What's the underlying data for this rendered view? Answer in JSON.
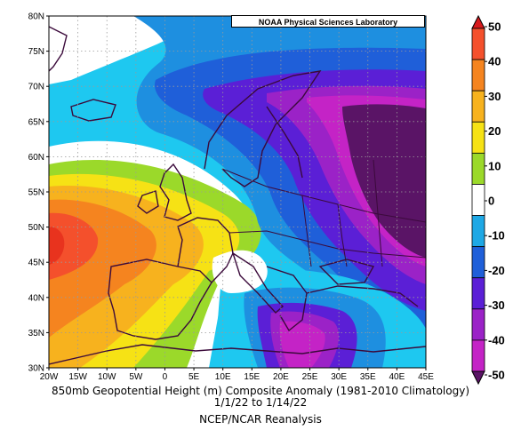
{
  "map": {
    "credit": "NOAA Physical Sciences Laboratory",
    "lat_labels": [
      "80N",
      "75N",
      "70N",
      "65N",
      "60N",
      "55N",
      "50N",
      "45N",
      "40N",
      "35N",
      "30N"
    ],
    "lon_labels": [
      "20W",
      "15W",
      "10W",
      "5W",
      "0",
      "5E",
      "10E",
      "15E",
      "20E",
      "25E",
      "30E",
      "35E",
      "40E",
      "45E"
    ],
    "colorbar_labels": [
      "50",
      "40",
      "30",
      "20",
      "10",
      "0",
      "-10",
      "-20",
      "-30",
      "-40",
      "-50"
    ],
    "colorbar_colors": [
      "#d7191c",
      "#f4502c",
      "#f5841f",
      "#f7b21e",
      "#f6e215",
      "#9bd92a",
      "#ffffff",
      "#1ea8e5",
      "#1f5fd9",
      "#5b1fd6",
      "#9b22c7",
      "#c423c6",
      "#5a1466"
    ],
    "caption_line1": "850mb Geopotential Height (m) Composite Anomaly (1981-2010 Climatology)",
    "caption_line2": "1/1/22 to 1/14/22",
    "caption_line3": "NCEP/NCAR Reanalysis"
  }
}
